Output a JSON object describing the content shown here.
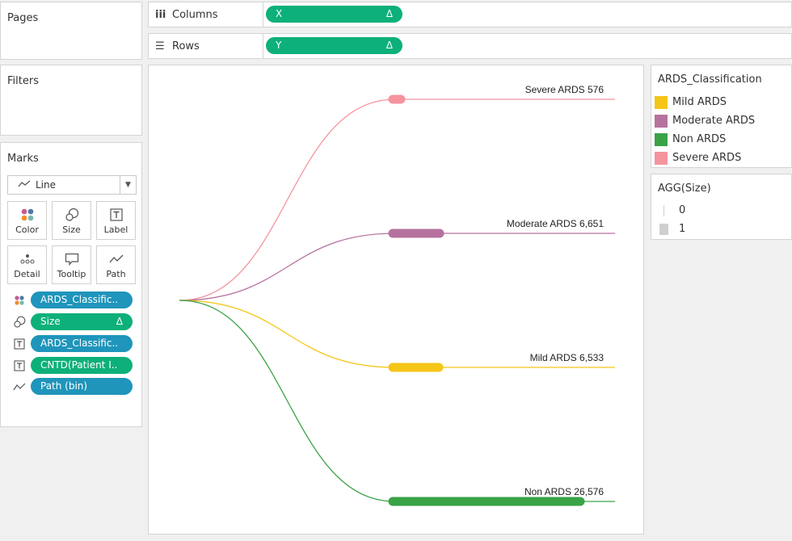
{
  "panels": {
    "pages_title": "Pages",
    "filters_title": "Filters",
    "marks_title": "Marks"
  },
  "shelves": {
    "columns": {
      "label": "Columns",
      "pill": "X",
      "pill_marker": "Δ"
    },
    "rows": {
      "label": "Rows",
      "pill": "Y",
      "pill_marker": "Δ"
    }
  },
  "marks": {
    "type": "Line",
    "cards": [
      "Color",
      "Size",
      "Label",
      "Detail",
      "Tooltip",
      "Path"
    ],
    "fields": [
      {
        "label": "ARDS_Classific..",
        "kind": "blue",
        "icon": "color-icon"
      },
      {
        "label": "Size",
        "kind": "green",
        "icon": "size-icon",
        "marker": "Δ"
      },
      {
        "label": "ARDS_Classific..",
        "kind": "blue",
        "icon": "label-icon"
      },
      {
        "label": "CNTD(Patient I..",
        "kind": "green",
        "icon": "label-icon"
      },
      {
        "label": "Path (bin)",
        "kind": "blue",
        "icon": "path-icon"
      }
    ]
  },
  "legend_color": {
    "title": "ARDS_Classification",
    "items": [
      {
        "label": "Mild ARDS",
        "color": "#f5c518"
      },
      {
        "label": "Moderate ARDS",
        "color": "#b6729e"
      },
      {
        "label": "Non ARDS",
        "color": "#3aa346"
      },
      {
        "label": "Severe ARDS",
        "color": "#f5949f"
      }
    ]
  },
  "legend_size": {
    "title": "AGG(Size)",
    "items": [
      "0",
      "1"
    ]
  },
  "chart_data": {
    "type": "line",
    "title": "",
    "xlabel": "",
    "ylabel": "",
    "series": [
      {
        "name": "Severe ARDS",
        "label": "Severe ARDS 576",
        "count": 576,
        "color": "#f5949f"
      },
      {
        "name": "Moderate ARDS",
        "label": "Moderate ARDS 6,651",
        "count": 6651,
        "color": "#b6729e"
      },
      {
        "name": "Mild ARDS",
        "label": "Mild ARDS 6,533",
        "count": 6533,
        "color": "#f5c518"
      },
      {
        "name": "Non ARDS",
        "label": "Non ARDS 26,576",
        "count": 26576,
        "color": "#3aa346"
      }
    ]
  }
}
